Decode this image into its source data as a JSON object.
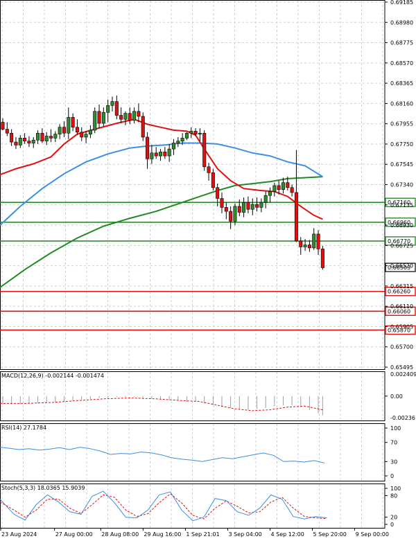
{
  "chart_data": {
    "type": "candlestick",
    "symbol_prices": [
      "0.69185",
      "0.68980",
      "0.68775",
      "0.68570",
      "0.68365",
      "0.68160",
      "0.67955",
      "0.67750",
      "0.67545",
      "0.67340",
      "0.67135",
      "0.66930",
      "0.66725",
      "0.66520",
      "0.66315",
      "0.66110",
      "0.65905",
      "0.65700",
      "0.65495"
    ],
    "ylim": [
      0.65495,
      0.69185
    ],
    "xlim": [
      0,
      100
    ],
    "x_ticks": [
      {
        "x": 1,
        "label": "23 Aug 2024"
      },
      {
        "x": 14,
        "label": "27 Aug 00:00"
      },
      {
        "x": 26,
        "label": "28 Aug 08:00"
      },
      {
        "x": 37,
        "label": "29 Aug 16:00"
      },
      {
        "x": 48,
        "label": "1 Sep 21:01"
      },
      {
        "x": 59,
        "label": "3 Sep 04:00"
      },
      {
        "x": 70,
        "label": "4 Sep 12:00"
      },
      {
        "x": 81,
        "label": "5 Sep 20:00"
      },
      {
        "x": 92,
        "label": "9 Sep 00:00"
      }
    ],
    "candles": [
      [
        1,
        0.6797,
        0.6801,
        0.6789,
        0.679
      ],
      [
        2,
        0.679,
        0.6797,
        0.6783,
        0.6786
      ],
      [
        3,
        0.6786,
        0.679,
        0.6773,
        0.6777
      ],
      [
        4,
        0.6777,
        0.6782,
        0.677,
        0.6774
      ],
      [
        5,
        0.6774,
        0.6784,
        0.6771,
        0.6781
      ],
      [
        6,
        0.6781,
        0.6786,
        0.6775,
        0.6778
      ],
      [
        7,
        0.6778,
        0.6783,
        0.6772,
        0.6776
      ],
      [
        8,
        0.6776,
        0.6782,
        0.6771,
        0.6779
      ],
      [
        9,
        0.6779,
        0.6789,
        0.6775,
        0.6786
      ],
      [
        10,
        0.6786,
        0.6791,
        0.6776,
        0.6778
      ],
      [
        11,
        0.6778,
        0.6787,
        0.6774,
        0.6783
      ],
      [
        12,
        0.6783,
        0.679,
        0.6777,
        0.6781
      ],
      [
        13,
        0.6781,
        0.6788,
        0.6777,
        0.6785
      ],
      [
        14,
        0.6785,
        0.6795,
        0.678,
        0.6792
      ],
      [
        15,
        0.6792,
        0.6798,
        0.6782,
        0.6786
      ],
      [
        16,
        0.6786,
        0.6812,
        0.678,
        0.6802
      ],
      [
        17,
        0.6802,
        0.6806,
        0.6788,
        0.6792
      ],
      [
        18,
        0.6792,
        0.68,
        0.6784,
        0.6787
      ],
      [
        19,
        0.6787,
        0.6792,
        0.6778,
        0.6782
      ],
      [
        20,
        0.6782,
        0.6788,
        0.6776,
        0.6785
      ],
      [
        21,
        0.6785,
        0.6794,
        0.6781,
        0.6789
      ],
      [
        22,
        0.6789,
        0.6812,
        0.6786,
        0.6808
      ],
      [
        23,
        0.6808,
        0.6815,
        0.6791,
        0.6796
      ],
      [
        24,
        0.6796,
        0.6812,
        0.6793,
        0.6807
      ],
      [
        25,
        0.6807,
        0.682,
        0.6797,
        0.6814
      ],
      [
        26,
        0.6814,
        0.6823,
        0.6808,
        0.6818
      ],
      [
        27,
        0.6818,
        0.6824,
        0.68,
        0.6804
      ],
      [
        28,
        0.6804,
        0.6812,
        0.6796,
        0.68
      ],
      [
        29,
        0.68,
        0.6808,
        0.6794,
        0.6806
      ],
      [
        30,
        0.6806,
        0.6812,
        0.6795,
        0.6799
      ],
      [
        31,
        0.6799,
        0.6812,
        0.6796,
        0.6808
      ],
      [
        32,
        0.6808,
        0.6816,
        0.6797,
        0.6803
      ],
      [
        33,
        0.6803,
        0.6807,
        0.6778,
        0.6782
      ],
      [
        34,
        0.6782,
        0.6787,
        0.675,
        0.676
      ],
      [
        35,
        0.676,
        0.6774,
        0.6755,
        0.6766
      ],
      [
        36,
        0.6766,
        0.6772,
        0.676,
        0.6763
      ],
      [
        37,
        0.6763,
        0.677,
        0.6758,
        0.6767
      ],
      [
        38,
        0.6767,
        0.6772,
        0.676,
        0.6763
      ],
      [
        39,
        0.6763,
        0.6775,
        0.6757,
        0.677
      ],
      [
        40,
        0.677,
        0.678,
        0.6764,
        0.6776
      ],
      [
        41,
        0.6776,
        0.6782,
        0.6772,
        0.6778
      ],
      [
        42,
        0.6778,
        0.6786,
        0.6774,
        0.6781
      ],
      [
        43,
        0.6781,
        0.6787,
        0.6779,
        0.6786
      ],
      [
        44,
        0.6786,
        0.6792,
        0.6781,
        0.6788
      ],
      [
        45,
        0.6788,
        0.6791,
        0.6783,
        0.6785
      ],
      [
        46,
        0.6785,
        0.6791,
        0.6778,
        0.6786
      ],
      [
        47,
        0.6786,
        0.6789,
        0.6748,
        0.6752
      ],
      [
        48,
        0.6752,
        0.6756,
        0.6738,
        0.6746
      ],
      [
        49,
        0.6746,
        0.675,
        0.6728,
        0.6731
      ],
      [
        50,
        0.6731,
        0.6735,
        0.6712,
        0.672
      ],
      [
        51,
        0.672,
        0.6726,
        0.6705,
        0.6711
      ],
      [
        52,
        0.6711,
        0.6716,
        0.6699,
        0.6707
      ],
      [
        53,
        0.6707,
        0.6712,
        0.6689,
        0.6697
      ],
      [
        54,
        0.6697,
        0.6715,
        0.6693,
        0.6712
      ],
      [
        55,
        0.6712,
        0.6719,
        0.6702,
        0.6706
      ],
      [
        56,
        0.6706,
        0.6721,
        0.6701,
        0.6716
      ],
      [
        57,
        0.6716,
        0.6722,
        0.6705,
        0.6709
      ],
      [
        58,
        0.6709,
        0.672,
        0.6703,
        0.6714
      ],
      [
        59,
        0.6714,
        0.6721,
        0.6707,
        0.6711
      ],
      [
        60,
        0.6711,
        0.672,
        0.6706,
        0.6716
      ],
      [
        61,
        0.6716,
        0.6727,
        0.671,
        0.6723
      ],
      [
        62,
        0.6723,
        0.6731,
        0.6716,
        0.6727
      ],
      [
        63,
        0.6727,
        0.6736,
        0.6722,
        0.6733
      ],
      [
        64,
        0.6733,
        0.6738,
        0.6724,
        0.6729
      ],
      [
        65,
        0.6729,
        0.6741,
        0.6725,
        0.6736
      ],
      [
        66,
        0.6736,
        0.6742,
        0.6728,
        0.6731
      ],
      [
        67,
        0.6731,
        0.6734,
        0.6722,
        0.6726
      ],
      [
        68,
        0.6726,
        0.6769,
        0.6676,
        0.6677
      ],
      [
        69,
        0.6677,
        0.6681,
        0.6663,
        0.6671
      ],
      [
        70,
        0.6671,
        0.6679,
        0.6667,
        0.6673
      ],
      [
        71,
        0.6673,
        0.6678,
        0.6666,
        0.667
      ],
      [
        72,
        0.667,
        0.669,
        0.6668,
        0.6684
      ],
      [
        73,
        0.6684,
        0.6688,
        0.6663,
        0.6669
      ],
      [
        74,
        0.6669,
        0.6672,
        0.6648,
        0.665
      ]
    ],
    "ma_red": [
      [
        0,
        0.6744
      ],
      [
        4,
        0.675
      ],
      [
        8,
        0.6755
      ],
      [
        12,
        0.6762
      ],
      [
        15,
        0.6775
      ],
      [
        18,
        0.6785
      ],
      [
        22,
        0.679
      ],
      [
        27,
        0.6796
      ],
      [
        31,
        0.68
      ],
      [
        34,
        0.6795
      ],
      [
        37,
        0.6792
      ],
      [
        40,
        0.6789
      ],
      [
        43,
        0.6788
      ],
      [
        45,
        0.6784
      ],
      [
        47,
        0.677
      ],
      [
        50,
        0.675
      ],
      [
        53,
        0.6738
      ],
      [
        56,
        0.673
      ],
      [
        60,
        0.6728
      ],
      [
        63,
        0.6727
      ],
      [
        66,
        0.6722
      ],
      [
        69,
        0.6712
      ],
      [
        72,
        0.6703
      ],
      [
        74,
        0.6699
      ]
    ],
    "ma_blue": [
      [
        0,
        0.6693
      ],
      [
        5,
        0.6712
      ],
      [
        10,
        0.673
      ],
      [
        15,
        0.6745
      ],
      [
        20,
        0.6757
      ],
      [
        25,
        0.6765
      ],
      [
        30,
        0.6771
      ],
      [
        34,
        0.6773
      ],
      [
        38,
        0.6774
      ],
      [
        42,
        0.6776
      ],
      [
        46,
        0.6776
      ],
      [
        50,
        0.6775
      ],
      [
        54,
        0.6771
      ],
      [
        58,
        0.6766
      ],
      [
        62,
        0.6763
      ],
      [
        66,
        0.6757
      ],
      [
        70,
        0.6753
      ],
      [
        74,
        0.6742
      ]
    ],
    "ma_green": [
      [
        0,
        0.663
      ],
      [
        6,
        0.6648
      ],
      [
        12,
        0.6665
      ],
      [
        18,
        0.668
      ],
      [
        24,
        0.6692
      ],
      [
        30,
        0.67
      ],
      [
        36,
        0.6707
      ],
      [
        42,
        0.6716
      ],
      [
        46,
        0.6722
      ],
      [
        50,
        0.6728
      ],
      [
        54,
        0.6733
      ],
      [
        58,
        0.6735
      ],
      [
        62,
        0.6737
      ],
      [
        66,
        0.674
      ],
      [
        70,
        0.6741
      ],
      [
        74,
        0.6742
      ]
    ],
    "levels": [
      {
        "value": 0.6716,
        "label": "0.67160",
        "color": "#2e8b2e"
      },
      {
        "value": 0.6696,
        "label": "0.66960",
        "color": "#2e8b2e"
      },
      {
        "value": 0.6677,
        "label": "0.66770",
        "color": "#2e8b2e"
      },
      {
        "value": 0.6626,
        "label": "0.66260",
        "color": "#e01010"
      },
      {
        "value": 0.6606,
        "label": "0.66060",
        "color": "#e01010"
      },
      {
        "value": 0.6587,
        "label": "0.65870",
        "color": "#e01010"
      }
    ],
    "current_price": {
      "value": 0.66503,
      "label": "0.66503"
    },
    "macd": {
      "label": "MACD(12,26,9) -0.002144 -0.001474",
      "ticks": [
        "0.002409",
        "0.00",
        "-0.002361"
      ],
      "ylim": [
        -0.002361,
        0.002409
      ],
      "histogram": [
        [
          1,
          -0.0009
        ],
        [
          3,
          -0.0009
        ],
        [
          5,
          -0.0009
        ],
        [
          7,
          -0.0008
        ],
        [
          9,
          -0.0008
        ],
        [
          11,
          -0.0007
        ],
        [
          13,
          -0.0007
        ],
        [
          15,
          -0.0006
        ],
        [
          17,
          -0.0005
        ],
        [
          19,
          -0.0004
        ],
        [
          21,
          -0.0003
        ],
        [
          23,
          -0.0002
        ],
        [
          25,
          -0.0002
        ],
        [
          27,
          -0.0001
        ],
        [
          29,
          -0.0001
        ],
        [
          31,
          -0.0001
        ],
        [
          33,
          -0.0002
        ],
        [
          35,
          -0.0003
        ],
        [
          37,
          -0.0003
        ],
        [
          39,
          -0.0004
        ],
        [
          41,
          -0.0005
        ],
        [
          43,
          -0.0006
        ],
        [
          45,
          -0.0006
        ],
        [
          47,
          -0.0008
        ],
        [
          49,
          -0.001
        ],
        [
          51,
          -0.0012
        ],
        [
          53,
          -0.0013
        ],
        [
          55,
          -0.0014
        ],
        [
          57,
          -0.0015
        ],
        [
          59,
          -0.0014
        ],
        [
          61,
          -0.0013
        ],
        [
          63,
          -0.0011
        ],
        [
          65,
          -0.001
        ],
        [
          67,
          -0.001
        ],
        [
          69,
          -0.0012
        ],
        [
          71,
          -0.0015
        ],
        [
          73,
          -0.0019
        ],
        [
          74,
          -0.0021
        ]
      ],
      "signal": [
        [
          0,
          -0.0008
        ],
        [
          6,
          -0.0008
        ],
        [
          12,
          -0.0007
        ],
        [
          18,
          -0.0005
        ],
        [
          24,
          -0.0003
        ],
        [
          30,
          -0.0002
        ],
        [
          36,
          -0.0003
        ],
        [
          42,
          -0.0005
        ],
        [
          46,
          -0.0006
        ],
        [
          50,
          -0.001
        ],
        [
          54,
          -0.0014
        ],
        [
          58,
          -0.0016
        ],
        [
          62,
          -0.0015
        ],
        [
          66,
          -0.0012
        ],
        [
          70,
          -0.0011
        ],
        [
          74,
          -0.0015
        ]
      ]
    },
    "rsi": {
      "label": "RSI(14) 27.1784",
      "ticks": [
        "100",
        "70",
        "30",
        "0"
      ],
      "values": [
        [
          0,
          60
        ],
        [
          3,
          58
        ],
        [
          6,
          55
        ],
        [
          9,
          57
        ],
        [
          12,
          54
        ],
        [
          15,
          56
        ],
        [
          18,
          59
        ],
        [
          21,
          55
        ],
        [
          24,
          60
        ],
        [
          27,
          57
        ],
        [
          30,
          52
        ],
        [
          33,
          45
        ],
        [
          36,
          47
        ],
        [
          39,
          46
        ],
        [
          42,
          50
        ],
        [
          45,
          48
        ],
        [
          48,
          44
        ],
        [
          51,
          38
        ],
        [
          54,
          35
        ],
        [
          57,
          33
        ],
        [
          60,
          30
        ],
        [
          63,
          34
        ],
        [
          66,
          38
        ],
        [
          69,
          36
        ],
        [
          72,
          40
        ],
        [
          75,
          44
        ],
        [
          78,
          48
        ],
        [
          81,
          43
        ],
        [
          84,
          30
        ],
        [
          87,
          31
        ],
        [
          90,
          29
        ],
        [
          93,
          32
        ],
        [
          96,
          27
        ]
      ]
    },
    "stoch": {
      "label": "Stoch(5,3,3) 18.0365 15.9039",
      "ticks": [
        "100",
        "80",
        "20",
        "0"
      ],
      "k": [
        [
          0,
          70
        ],
        [
          3,
          28
        ],
        [
          6,
          12
        ],
        [
          9,
          55
        ],
        [
          12,
          82
        ],
        [
          15,
          62
        ],
        [
          18,
          35
        ],
        [
          21,
          28
        ],
        [
          24,
          78
        ],
        [
          27,
          92
        ],
        [
          30,
          60
        ],
        [
          33,
          20
        ],
        [
          36,
          18
        ],
        [
          39,
          40
        ],
        [
          42,
          82
        ],
        [
          45,
          90
        ],
        [
          48,
          40
        ],
        [
          51,
          10
        ],
        [
          54,
          20
        ],
        [
          57,
          72
        ],
        [
          60,
          66
        ],
        [
          63,
          35
        ],
        [
          66,
          25
        ],
        [
          69,
          45
        ],
        [
          72,
          82
        ],
        [
          75,
          70
        ],
        [
          78,
          22
        ],
        [
          81,
          15
        ],
        [
          84,
          22
        ],
        [
          87,
          18
        ]
      ],
      "d": [
        [
          0,
          62
        ],
        [
          3,
          40
        ],
        [
          6,
          20
        ],
        [
          9,
          40
        ],
        [
          12,
          70
        ],
        [
          15,
          70
        ],
        [
          18,
          45
        ],
        [
          21,
          30
        ],
        [
          24,
          55
        ],
        [
          27,
          82
        ],
        [
          30,
          75
        ],
        [
          33,
          40
        ],
        [
          36,
          22
        ],
        [
          39,
          30
        ],
        [
          42,
          60
        ],
        [
          45,
          85
        ],
        [
          48,
          60
        ],
        [
          51,
          25
        ],
        [
          54,
          15
        ],
        [
          57,
          45
        ],
        [
          60,
          65
        ],
        [
          63,
          50
        ],
        [
          66,
          32
        ],
        [
          69,
          35
        ],
        [
          72,
          62
        ],
        [
          75,
          75
        ],
        [
          78,
          45
        ],
        [
          81,
          22
        ],
        [
          84,
          18
        ],
        [
          87,
          16
        ]
      ]
    },
    "grid": true,
    "colors": {
      "bull": "#2e8b2e",
      "bear": "#e01010",
      "ma_red": "#e01010",
      "ma_blue": "#3a8ee6",
      "ma_green": "#1f8a1f",
      "rsi": "#3a8ee6",
      "stoch_k": "#3a8ee6",
      "stoch_d": "#e01010",
      "grid": "#c8d0dc"
    }
  }
}
